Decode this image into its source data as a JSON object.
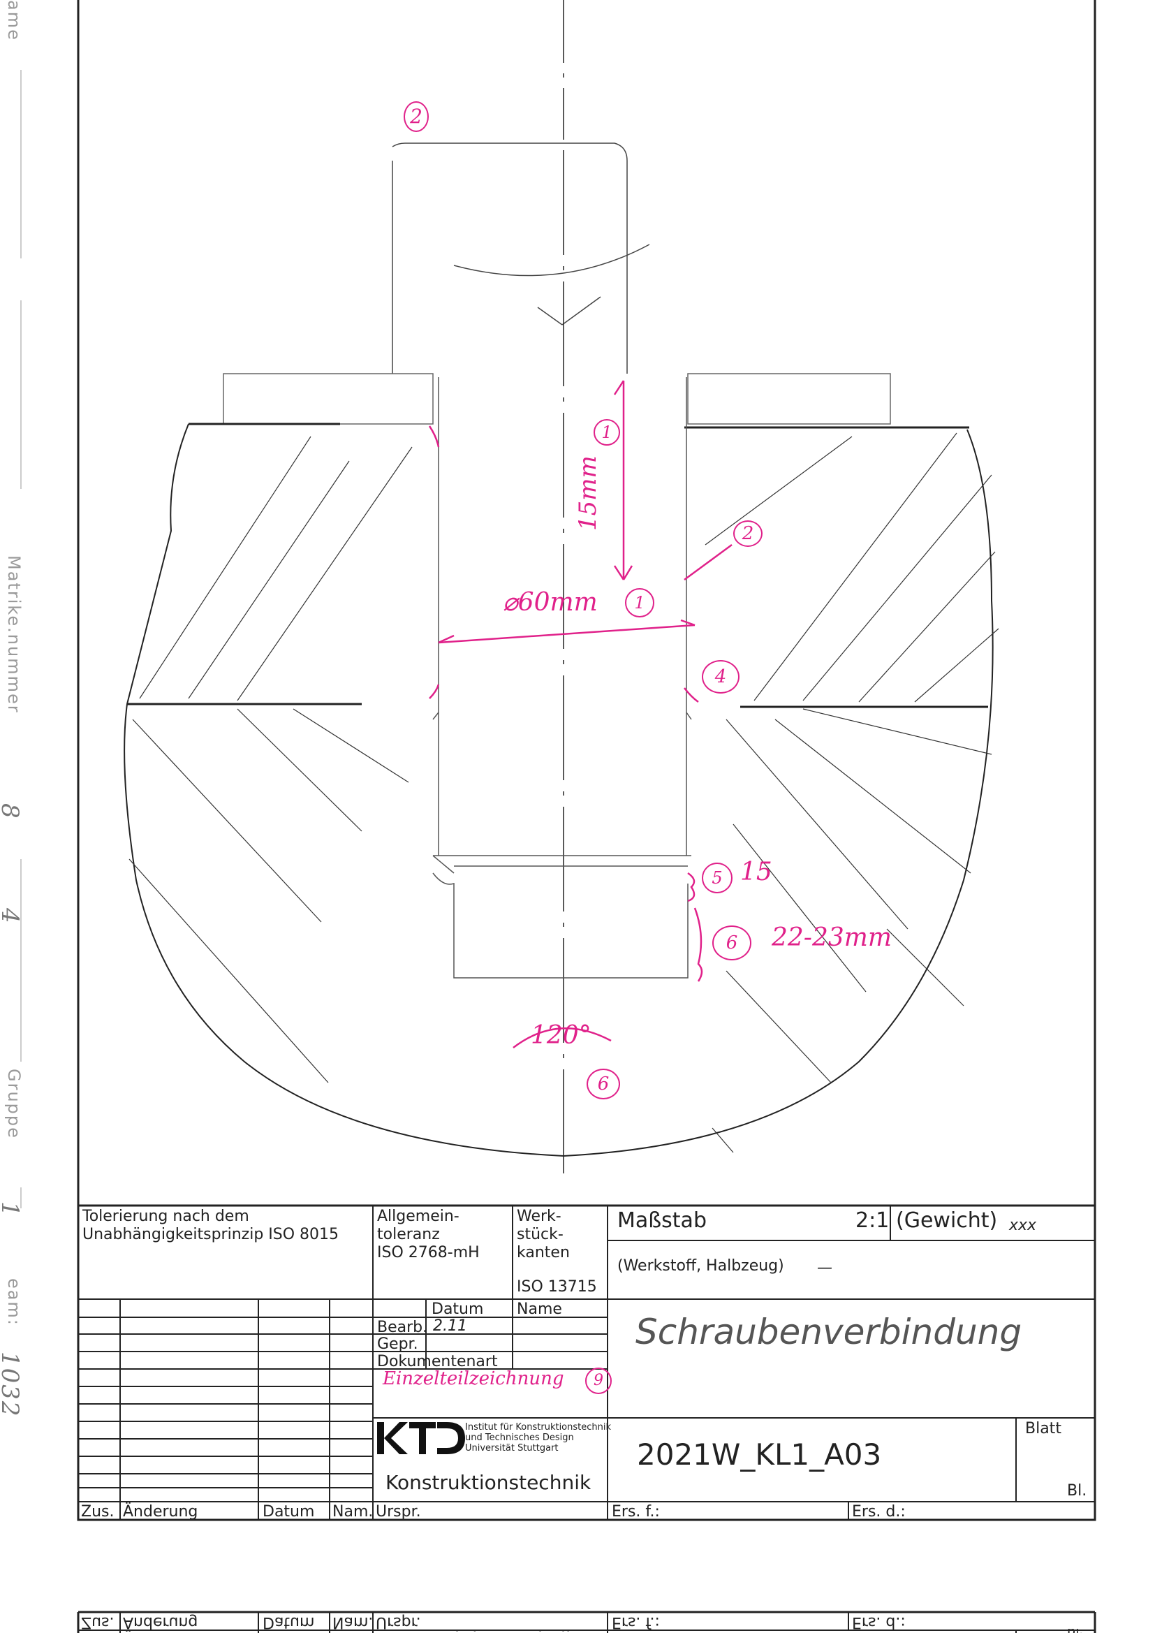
{
  "margin": {
    "name_label": "ame",
    "matrikel_label": "Matrike.nummer",
    "matrikel_value_1": "8",
    "matrikel_value_2": "4",
    "gruppe_label": "Gruppe",
    "gruppe_value": "1",
    "team_label": "eam:",
    "team_value": "1032"
  },
  "annotations": {
    "n2_top": "2",
    "n2_right": "2",
    "depth_label": "15mm",
    "depth_marker": "1",
    "diameter_label": "⌀60mm",
    "diameter_marker": "1",
    "n4": "4",
    "n5": "5",
    "n5_text": "15",
    "n6": "6",
    "n6_text": "22-23mm",
    "angle_label": "120°",
    "n6_bottom": "6",
    "n9": "9"
  },
  "title_block": {
    "tolerierung": "Tolerierung nach dem",
    "tolerierung_2": "Unabhängigkeitsprinzip ISO 8015",
    "allgemein_1": "Allgemein-",
    "allgemein_2": "toleranz",
    "allgemein_3": "ISO 2768-mH",
    "werk_1": "Werk-",
    "werk_2": "stück-",
    "werk_3": "kanten",
    "werk_4": "ISO 13715",
    "massstab_label": "Maßstab",
    "massstab_value": "2:1",
    "gewicht_label": "(Gewicht)",
    "gewicht_value": "xxx",
    "werkstoff_label": "(Werkstoff, Halbzeug)",
    "werkstoff_value": "—",
    "datum_label": "Datum",
    "name_label": "Name",
    "bearb_label": "Bearb.",
    "bearb_date": "2.11",
    "gepr_label": "Gepr.",
    "dokumentenart_label": "Dokumentenart",
    "dokumentenart_value": "Einzelteilzeichnung",
    "title": "Schraubenverbindung",
    "logo_text": "KTD",
    "institute_1": "Institut für Konstruktionstechnik",
    "institute_2": "und Technisches Design",
    "institute_3": "Universität Stuttgart",
    "konstruktionstechnik": "Konstruktionstechnik",
    "drawing_number": "2021W_KL1_A03",
    "blatt_label": "Blatt",
    "bl_label": "Bl.",
    "zus_label": "Zus.",
    "aenderung_label": "Änderung",
    "datum2_label": "Datum",
    "nam_label": "Nam.",
    "urspr_label": "Urspr.",
    "ersf_label": "Ers. f.:",
    "ersd_label": "Ers. d.:"
  },
  "mirrored_block": {
    "zus_label": "Zus.",
    "aenderung_label": "Änderung",
    "datum_label": "Datum",
    "nam_label": "Nam.",
    "urspr_label": "Urspr.",
    "ersf_label": "Ers. f.:",
    "ersd_label": "Ers. d.:",
    "konstruktionstechnik": "Konstruktionstechnik",
    "bl_label": "Bl."
  },
  "colors": {
    "ink": "#222222",
    "pink": "#e0218a",
    "margin_grey": "#9a9a9a"
  }
}
